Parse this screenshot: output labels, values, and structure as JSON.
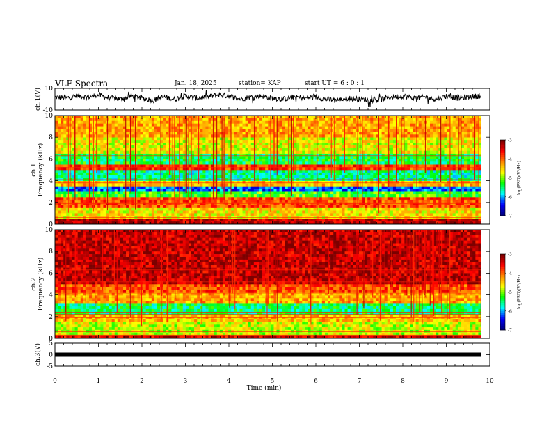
{
  "header": {
    "title": "VLF Spectra",
    "date": "Jan. 18, 2025",
    "station": "station= KAP",
    "start_ut": "start  UT  =   6 : 0  : 1"
  },
  "colors": {
    "colormap": [
      "#7a0000",
      "#ff0000",
      "#ff8800",
      "#ffff00",
      "#00ff00",
      "#00ffff",
      "#0000ff",
      "#000080"
    ],
    "trace": "#000000"
  },
  "chart_data": [
    {
      "type": "line",
      "panel": "ch1-waveform",
      "ylabel": "ch.1(V)",
      "ylim": [
        -10,
        10
      ],
      "y_ticks": [
        "10",
        "-10"
      ],
      "xlim": [
        0,
        10
      ],
      "series": [
        {
          "x": [
            0,
            0.25,
            0.5,
            0.75,
            1,
            1.25,
            1.5,
            1.75,
            2,
            2.25,
            2.5,
            2.75,
            3,
            3.25,
            3.5,
            3.75,
            4,
            4.25,
            4.5,
            4.75,
            5,
            5.25,
            5.5,
            5.75,
            6,
            6.25,
            6.5,
            6.75,
            7,
            7.25,
            7.5,
            7.75,
            8,
            8.25,
            8.5,
            8.75,
            9,
            9.25,
            9.5,
            9.75
          ],
          "y": [
            2,
            1,
            3,
            2,
            4,
            1,
            0,
            3,
            1,
            -1,
            2,
            0,
            3,
            1,
            2,
            4,
            3,
            0,
            2,
            3,
            1,
            0,
            2,
            1,
            2,
            0,
            -1,
            1,
            0,
            -1,
            0,
            2,
            3,
            1,
            2,
            0,
            3,
            1,
            2,
            3
          ]
        }
      ]
    },
    {
      "type": "heatmap",
      "panel": "ch1-spectrogram",
      "ylabel": "ch.1\nFrequency (kHz)",
      "ylim": [
        0,
        10
      ],
      "y_ticks": [
        "0",
        "2",
        "4",
        "6",
        "8",
        "10"
      ],
      "xlim": [
        0,
        10
      ],
      "colorbar": {
        "label": "log(PSD)(V²/Hz)",
        "range": [
          -7,
          -3
        ],
        "ticks": [
          "-3",
          "-4",
          "-5",
          "-6",
          "-7"
        ]
      },
      "bands": [
        {
          "f": [
            0,
            0.5
          ],
          "level": -3.3
        },
        {
          "f": [
            0.5,
            1.5
          ],
          "level": -4.6
        },
        {
          "f": [
            1.5,
            2.5
          ],
          "level": -3.9
        },
        {
          "f": [
            2.5,
            3.0
          ],
          "level": -5.2
        },
        {
          "f": [
            3.0,
            3.5
          ],
          "level": -6.2
        },
        {
          "f": [
            3.5,
            4.0
          ],
          "level": -4.4
        },
        {
          "f": [
            4.0,
            5.0
          ],
          "level": -5.6
        },
        {
          "f": [
            5.0,
            5.5
          ],
          "level": -3.8
        },
        {
          "f": [
            5.5,
            6.5
          ],
          "level": -5.4
        },
        {
          "f": [
            6.5,
            8.0
          ],
          "level": -4.7
        },
        {
          "f": [
            8.0,
            10.0
          ],
          "level": -4.3
        }
      ]
    },
    {
      "type": "heatmap",
      "panel": "ch2-spectrogram",
      "ylabel": "ch.2\nFrequency (kHz)",
      "ylim": [
        0,
        10
      ],
      "y_ticks": [
        "0",
        "2",
        "4",
        "6",
        "8",
        "10"
      ],
      "xlim": [
        0,
        10
      ],
      "colorbar": {
        "label": "log(PSD)(V²/Hz)",
        "range": [
          -7,
          -3
        ],
        "ticks": [
          "-3",
          "-4",
          "-5",
          "-6",
          "-7"
        ]
      },
      "bands": [
        {
          "f": [
            0,
            0.3
          ],
          "level": -3.4
        },
        {
          "f": [
            0.3,
            1.5
          ],
          "level": -4.8
        },
        {
          "f": [
            1.5,
            2.2
          ],
          "level": -4.4
        },
        {
          "f": [
            2.2,
            3.2
          ],
          "level": -5.5
        },
        {
          "f": [
            3.2,
            4.2
          ],
          "level": -4.3
        },
        {
          "f": [
            4.2,
            5.0
          ],
          "level": -3.9
        },
        {
          "f": [
            5.0,
            10.0
          ],
          "level": -3.3
        }
      ]
    },
    {
      "type": "line",
      "panel": "ch3-waveform",
      "ylabel": "ch.3(V)",
      "ylim": [
        -5,
        5
      ],
      "y_ticks": [
        "5",
        "0",
        "-5"
      ],
      "xlim": [
        0,
        10
      ],
      "x_ticks": [
        "0",
        "1",
        "2",
        "3",
        "4",
        "5",
        "6",
        "7",
        "8",
        "9",
        "10"
      ],
      "xlabel": "Time  (min)",
      "series": [
        {
          "x": [
            0,
            9.8
          ],
          "y": [
            0,
            0
          ]
        }
      ]
    }
  ]
}
